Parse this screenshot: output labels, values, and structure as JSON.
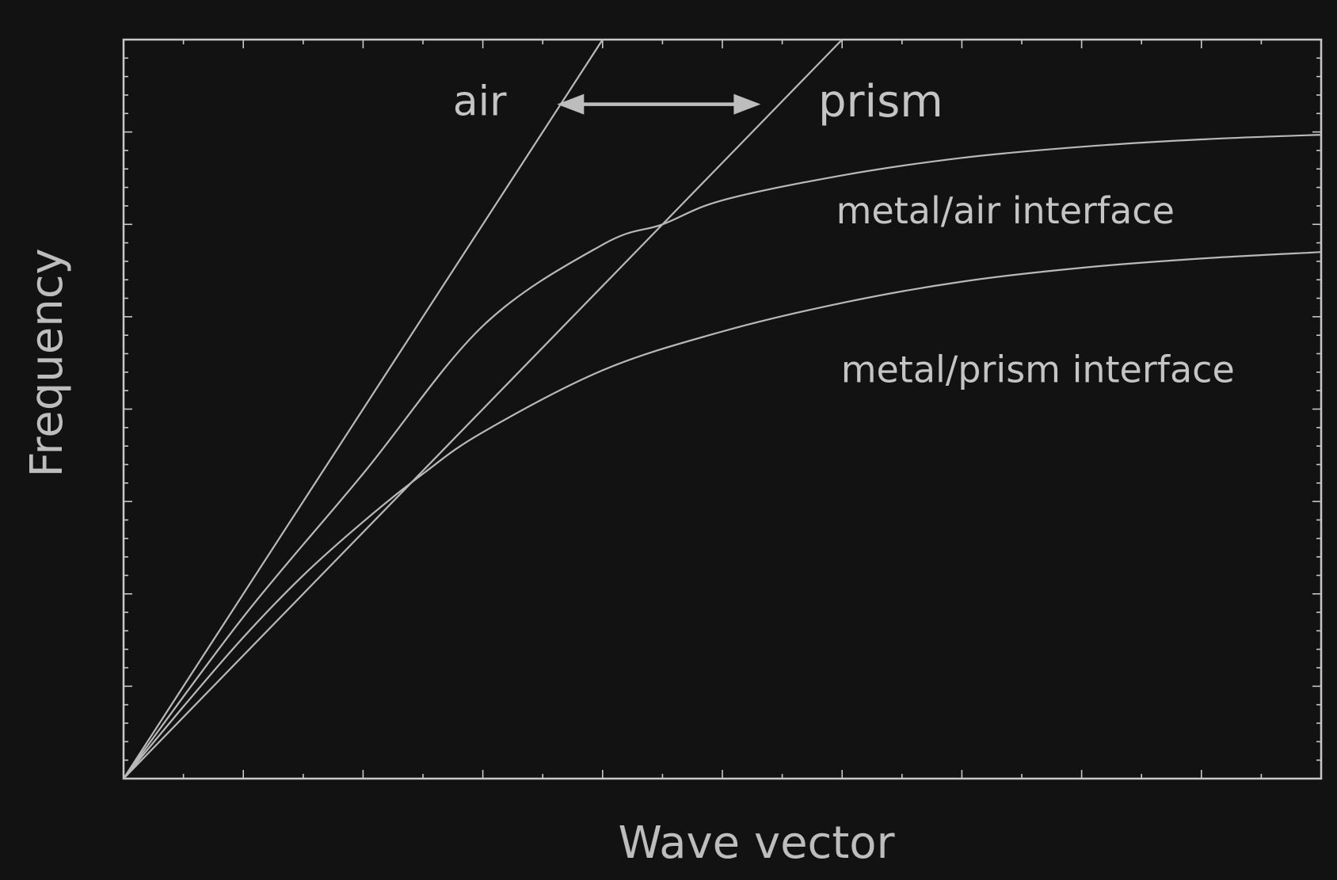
{
  "chart_data": {
    "type": "line",
    "title": "",
    "xlabel": "Wave vector",
    "ylabel": "Frequency",
    "xlim": [
      0,
      10
    ],
    "ylim": [
      0,
      8
    ],
    "grid": false,
    "legend": "none",
    "colors": {
      "background": "#121212",
      "lines": "#b9b9b9",
      "text": "#c4c4c4"
    },
    "series": [
      {
        "name": "air",
        "x": [
          0,
          4.0
        ],
        "y": [
          0,
          8.0
        ]
      },
      {
        "name": "prism",
        "x": [
          0,
          6.0
        ],
        "y": [
          0,
          8.0
        ]
      },
      {
        "name": "metal/air interface",
        "x": [
          0,
          1.0,
          2.0,
          3.0,
          4.0,
          4.5,
          5.0,
          6.0,
          7.0,
          8.0,
          9.0,
          10.0
        ],
        "y": [
          0,
          1.75,
          3.3,
          4.9,
          5.78,
          6.0,
          6.26,
          6.53,
          6.72,
          6.84,
          6.92,
          6.97
        ]
      },
      {
        "name": "metal/prism interface",
        "x": [
          0,
          0.5,
          1.0,
          1.5,
          2.0,
          2.5,
          3.0,
          4.0,
          5.0,
          6.0,
          7.0,
          8.0,
          9.0,
          10.0
        ],
        "y": [
          0,
          0.78,
          1.53,
          2.2,
          2.78,
          3.3,
          3.75,
          4.42,
          4.84,
          5.15,
          5.38,
          5.53,
          5.63,
          5.7
        ]
      }
    ],
    "annotations": [
      {
        "text": "air",
        "x": 2.75,
        "y": 7.3,
        "size": 52
      },
      {
        "text": "prism",
        "x": 5.8,
        "y": 7.3,
        "size": 56
      },
      {
        "text": "metal/air interface",
        "x": 5.95,
        "y": 6.12,
        "size": 46
      },
      {
        "text": "metal/prism interface",
        "x": 5.99,
        "y": 4.4,
        "size": 46
      }
    ],
    "double_arrow": {
      "x_start": 3.62,
      "x_end": 5.32,
      "y": 7.3
    }
  }
}
